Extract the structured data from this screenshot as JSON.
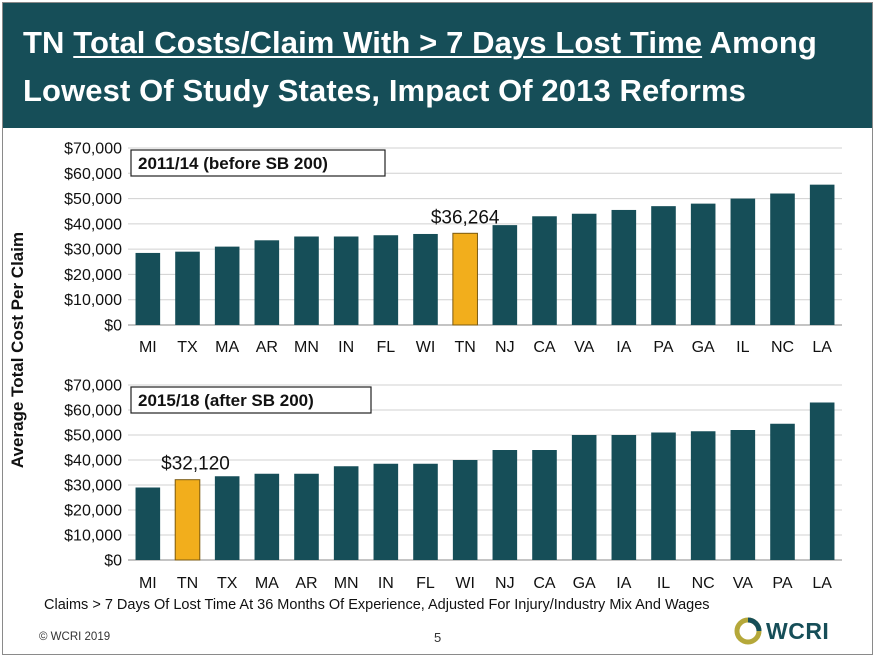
{
  "slide": {
    "title_line1_pre": "TN ",
    "title_line1_underlined": "Total Costs/Claim With > 7 Days Lost Time",
    "title_line1_post": " Among",
    "title_line2": "Lowest Of Study States, Impact Of 2013 Reforms",
    "y_axis_label": "Average Total Cost Per Claim",
    "footnote": "Claims > 7 Days Of Lost Time At 36 Months Of Experience, Adjusted For Injury/Industry Mix And Wages",
    "copyright": "© WCRI 2019",
    "page_number": "5",
    "logo_text": "WCRI",
    "colors": {
      "banner": "#164e58",
      "bar": "#164e58",
      "highlight": "#f2ae1c"
    }
  },
  "chart_data": [
    {
      "type": "bar",
      "title": "2011/14 (before SB 200)",
      "ylabel": "Average Total Cost Per Claim",
      "ylim": [
        0,
        70000
      ],
      "yticks": [
        "$0",
        "$10,000",
        "$20,000",
        "$30,000",
        "$40,000",
        "$50,000",
        "$60,000",
        "$70,000"
      ],
      "grid": true,
      "categories": [
        "MI",
        "TX",
        "MA",
        "AR",
        "MN",
        "IN",
        "FL",
        "WI",
        "TN",
        "NJ",
        "CA",
        "VA",
        "IA",
        "PA",
        "GA",
        "IL",
        "NC",
        "LA"
      ],
      "values": [
        28500,
        29000,
        31000,
        33500,
        35000,
        35000,
        35500,
        36000,
        36264,
        39500,
        43000,
        44000,
        45500,
        47000,
        48000,
        50000,
        52000,
        55500
      ],
      "highlight": "TN",
      "annotation": "$36,264"
    },
    {
      "type": "bar",
      "title": "2015/18 (after SB 200)",
      "ylabel": "Average Total Cost Per Claim",
      "ylim": [
        0,
        70000
      ],
      "yticks": [
        "$0",
        "$10,000",
        "$20,000",
        "$30,000",
        "$40,000",
        "$50,000",
        "$60,000",
        "$70,000"
      ],
      "grid": true,
      "categories": [
        "MI",
        "TN",
        "TX",
        "MA",
        "AR",
        "MN",
        "IN",
        "FL",
        "WI",
        "NJ",
        "CA",
        "GA",
        "IA",
        "IL",
        "NC",
        "VA",
        "PA",
        "LA"
      ],
      "values": [
        29000,
        32120,
        33500,
        34500,
        34500,
        37500,
        38500,
        38500,
        40000,
        44000,
        44000,
        50000,
        50000,
        51000,
        51500,
        52000,
        54500,
        63000
      ],
      "highlight": "TN",
      "annotation": "$32,120"
    }
  ]
}
